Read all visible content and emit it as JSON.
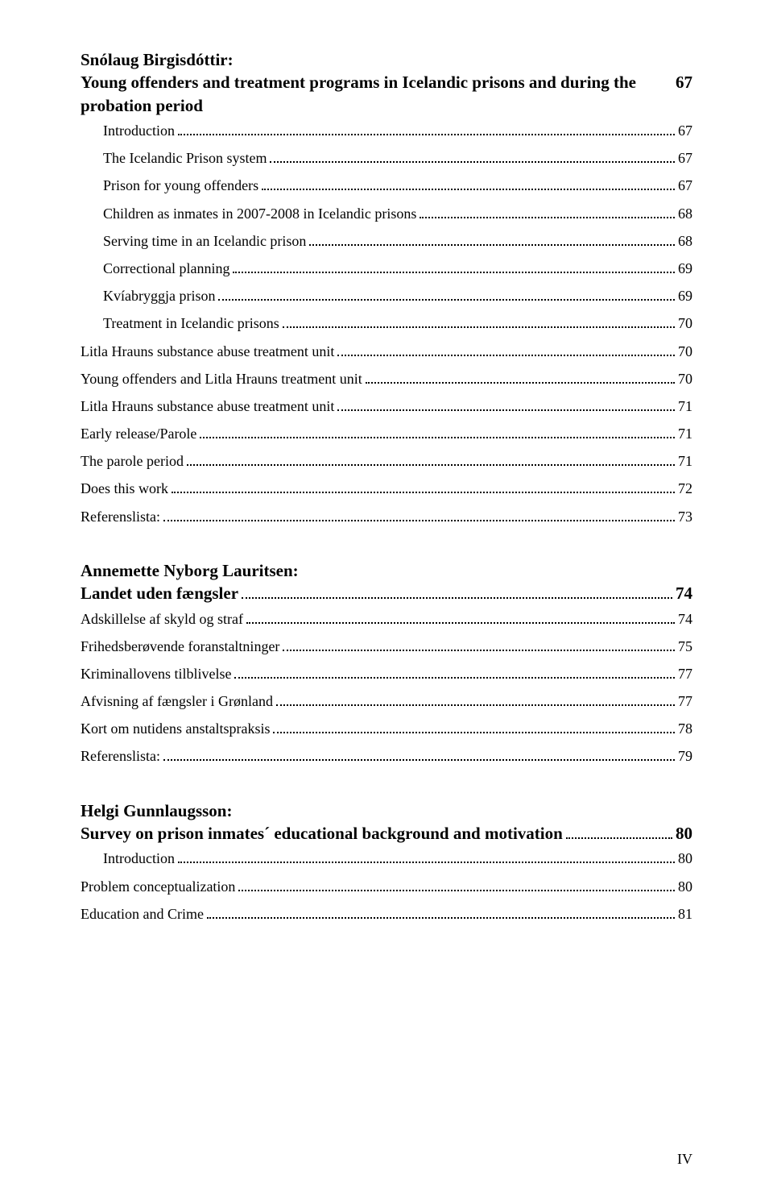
{
  "blocks": [
    {
      "author": "Snólaug Birgisdóttir:",
      "title": "Young offenders and treatment programs in Icelandic prisons and during the probation period",
      "title_page": "67",
      "entries": [
        {
          "label": "Introduction",
          "page": "67",
          "indent": true
        },
        {
          "label": "The Icelandic Prison system",
          "page": "67",
          "indent": true
        },
        {
          "label": "Prison for young offenders",
          "page": "67",
          "indent": true
        },
        {
          "label": "Children as inmates in 2007-2008 in Icelandic prisons",
          "page": "68",
          "indent": true
        },
        {
          "label": "Serving time in an Icelandic prison",
          "page": "68",
          "indent": true
        },
        {
          "label": "Correctional planning",
          "page": "69",
          "indent": true
        },
        {
          "label": "Kvíabryggja prison",
          "page": "69",
          "indent": true
        },
        {
          "label": "Treatment in Icelandic prisons",
          "page": "70",
          "indent": true
        },
        {
          "label": "Litla Hrauns substance abuse treatment unit",
          "page": "70",
          "indent": false
        },
        {
          "label": "Young offenders and Litla Hrauns treatment unit",
          "page": "70",
          "indent": false
        },
        {
          "label": "Litla Hrauns substance abuse treatment unit",
          "page": "71",
          "indent": false
        },
        {
          "label": "Early release/Parole",
          "page": "71",
          "indent": false
        },
        {
          "label": "The parole period",
          "page": "71",
          "indent": false
        },
        {
          "label": "Does this work",
          "page": "72",
          "indent": false
        },
        {
          "label": "Referenslista:",
          "page": "73",
          "indent": false
        }
      ]
    },
    {
      "author": "Annemette Nyborg Lauritsen:",
      "title": "Landet uden fængsler",
      "title_page": "74",
      "entries": [
        {
          "label": "Adskillelse af skyld og straf",
          "page": "74",
          "indent": false
        },
        {
          "label": "Frihedsberøvende foranstaltninger",
          "page": "75",
          "indent": false
        },
        {
          "label": "Kriminallovens tilblivelse",
          "page": "77",
          "indent": false
        },
        {
          "label": "Afvisning af fængsler i Grønland",
          "page": "77",
          "indent": false
        },
        {
          "label": "Kort om nutidens anstaltspraksis",
          "page": "78",
          "indent": false
        },
        {
          "label": "Referenslista:",
          "page": "79",
          "indent": false
        }
      ]
    },
    {
      "author": "Helgi Gunnlaugsson:",
      "title": "Survey on prison inmates´ educational background and motivation",
      "title_page": "80",
      "entries": [
        {
          "label": "Introduction",
          "page": "80",
          "indent": true
        },
        {
          "label": "Problem conceptualization",
          "page": "80",
          "indent": false
        },
        {
          "label": "Education and Crime",
          "page": "81",
          "indent": false
        }
      ]
    }
  ],
  "page_footer": "IV"
}
